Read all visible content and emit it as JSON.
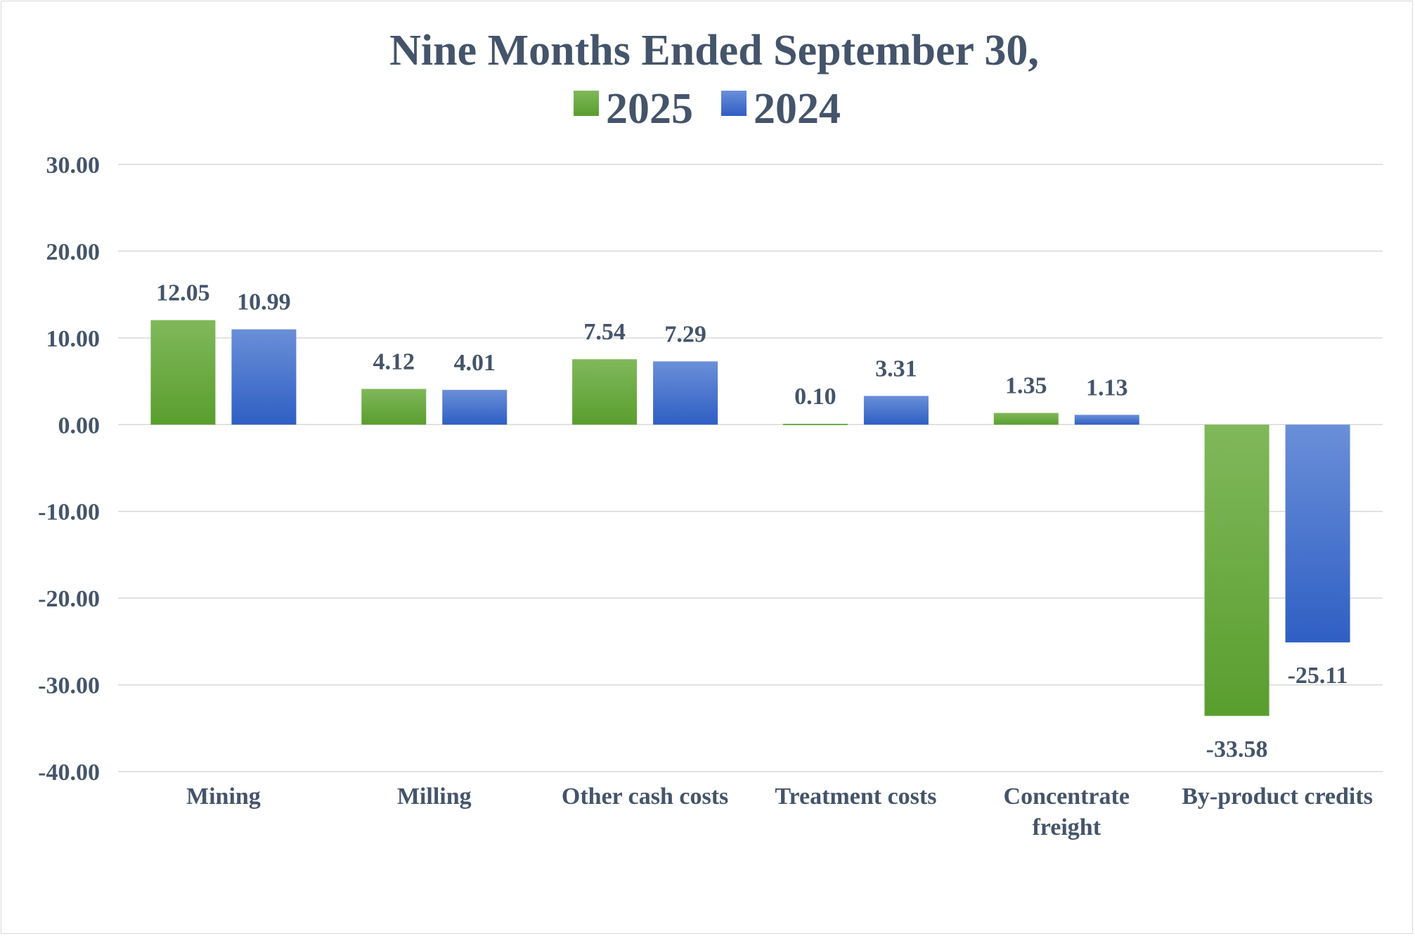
{
  "chart_data": {
    "type": "bar",
    "title": "Nine Months Ended September 30,",
    "categories": [
      [
        "Mining"
      ],
      [
        "Milling"
      ],
      [
        "Other cash costs"
      ],
      [
        "Treatment costs"
      ],
      [
        "Concentrate",
        "freight"
      ],
      [
        "By-product credits"
      ]
    ],
    "series": [
      {
        "name": "2025",
        "values": [
          12.05,
          4.12,
          7.54,
          0.1,
          1.35,
          -33.58
        ],
        "color_top": "#80b85a",
        "color_bottom": "#5a9e2f"
      },
      {
        "name": "2024",
        "values": [
          10.99,
          4.01,
          7.29,
          3.31,
          1.13,
          -25.11
        ],
        "color_top": "#6a8fd8",
        "color_bottom": "#2f5fc4"
      }
    ],
    "data_labels": [
      [
        "12.05",
        "4.12",
        "7.54",
        "0.10",
        "1.35",
        "-33.58"
      ],
      [
        "10.99",
        "4.01",
        "7.29",
        "3.31",
        "1.13",
        "-25.11"
      ]
    ],
    "y_ticks": [
      "30.00",
      "20.00",
      "10.00",
      "0.00",
      "-10.00",
      "-20.00",
      "-30.00",
      "-40.00"
    ],
    "ylim": [
      -40,
      30
    ],
    "xlabel": "",
    "ylabel": "",
    "grid": true,
    "legend_position": "top"
  }
}
